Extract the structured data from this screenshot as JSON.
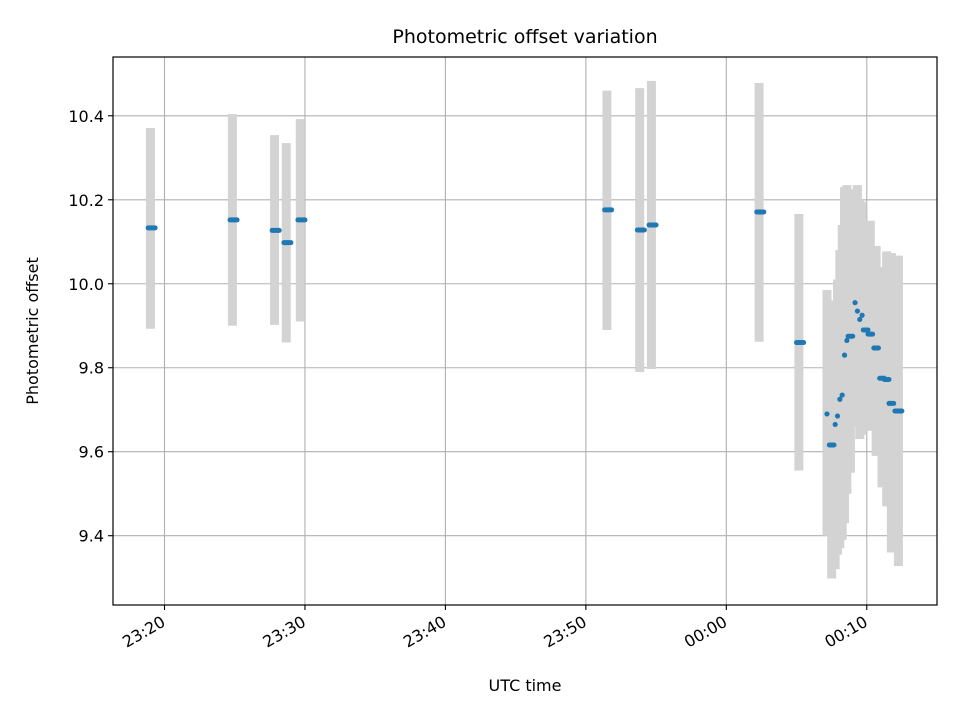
{
  "chart_data": {
    "type": "scatter",
    "title": "Photometric offset variation",
    "xlabel": "UTC time",
    "ylabel": "Photometric offset",
    "x_axis": {
      "kind": "time",
      "min": "23:16:20",
      "max": "00:15:00",
      "ticks": [
        "23:20",
        "23:30",
        "23:40",
        "23:50",
        "00:00",
        "00:10"
      ],
      "tick_times": [
        "23:20:00",
        "23:30:00",
        "23:40:00",
        "23:50:00",
        "00:00:00",
        "00:10:00"
      ],
      "tick_rotation_deg": 30
    },
    "ylim": [
      9.235,
      10.54
    ],
    "y_ticks": [
      9.4,
      9.6,
      9.8,
      10.0,
      10.2,
      10.4
    ],
    "y_tick_labels": [
      "9.4",
      "9.6",
      "9.8",
      "10.0",
      "10.2",
      "10.4"
    ],
    "grid": true,
    "colors": {
      "marker": "#1f77b4",
      "errorbar": "#d3d3d3",
      "grid": "#b0b0b0",
      "axes": "#000000"
    },
    "series": [
      {
        "points": [
          {
            "time": "23:19:00",
            "y": 10.133,
            "yerr_low": 9.893,
            "yerr_high": 10.371,
            "tstart": "23:18:50",
            "tend": "23:19:20"
          },
          {
            "time": "23:24:50",
            "y": 10.152,
            "yerr_low": 9.9,
            "yerr_high": 10.404,
            "tstart": "23:24:40",
            "tend": "23:25:10"
          },
          {
            "time": "23:27:50",
            "y": 10.127,
            "yerr_low": 9.902,
            "yerr_high": 10.354,
            "tstart": "23:27:40",
            "tend": "23:28:10"
          },
          {
            "time": "23:28:40",
            "y": 10.098,
            "yerr_low": 9.86,
            "yerr_high": 10.335,
            "tstart": "23:28:30",
            "tend": "23:29:00"
          },
          {
            "time": "23:29:40",
            "y": 10.152,
            "yerr_low": 9.91,
            "yerr_high": 10.392,
            "tstart": "23:29:30",
            "tend": "23:30:00"
          },
          {
            "time": "23:51:30",
            "y": 10.176,
            "yerr_low": 9.89,
            "yerr_high": 10.46,
            "tstart": "23:51:20",
            "tend": "23:51:50"
          },
          {
            "time": "23:53:50",
            "y": 10.128,
            "yerr_low": 9.79,
            "yerr_high": 10.466,
            "tstart": "23:53:40",
            "tend": "23:54:10"
          },
          {
            "time": "23:54:40",
            "y": 10.14,
            "yerr_low": 9.797,
            "yerr_high": 10.483,
            "tstart": "23:54:30",
            "tend": "23:55:00"
          },
          {
            "time": "00:02:20",
            "y": 10.171,
            "yerr_low": 9.862,
            "yerr_high": 10.478,
            "tstart": "00:02:10",
            "tend": "00:02:40"
          },
          {
            "time": "00:05:10",
            "y": 9.86,
            "yerr_low": 9.555,
            "yerr_high": 10.166,
            "tstart": "00:05:00",
            "tend": "00:05:30"
          },
          {
            "time": "00:07:10",
            "y": 9.69,
            "yerr_low": 9.4,
            "yerr_high": 9.985,
            "tstart": "00:07:05",
            "tend": "00:07:15"
          },
          {
            "time": "00:07:30",
            "y": 9.616,
            "yerr_low": 9.298,
            "yerr_high": 9.93,
            "tstart": "00:07:20",
            "tend": "00:07:40"
          },
          {
            "time": "00:07:45",
            "y": 9.665,
            "yerr_low": 9.32,
            "yerr_high": 9.96,
            "tstart": "00:07:40",
            "tend": "00:07:50"
          },
          {
            "time": "00:07:55",
            "y": 9.685,
            "yerr_low": 9.355,
            "yerr_high": 10.01,
            "tstart": "00:07:50",
            "tend": "00:08:00"
          },
          {
            "time": "00:08:05",
            "y": 9.725,
            "yerr_low": 9.37,
            "yerr_high": 10.08,
            "tstart": "00:08:00",
            "tend": "00:08:10"
          },
          {
            "time": "00:08:15",
            "y": 9.735,
            "yerr_low": 9.39,
            "yerr_high": 10.14,
            "tstart": "00:08:10",
            "tend": "00:08:20"
          },
          {
            "time": "00:08:25",
            "y": 9.83,
            "yerr_low": 9.43,
            "yerr_high": 10.23,
            "tstart": "00:08:20",
            "tend": "00:08:30"
          },
          {
            "time": "00:08:35",
            "y": 9.865,
            "yerr_low": 9.5,
            "yerr_high": 10.235,
            "tstart": "00:08:30",
            "tend": "00:08:40"
          },
          {
            "time": "00:08:50",
            "y": 9.875,
            "yerr_low": 9.55,
            "yerr_high": 10.2,
            "tstart": "00:08:40",
            "tend": "00:09:00"
          },
          {
            "time": "00:09:10",
            "y": 9.955,
            "yerr_low": 9.7,
            "yerr_high": 10.225,
            "tstart": "00:09:05",
            "tend": "00:09:15"
          },
          {
            "time": "00:09:20",
            "y": 9.935,
            "yerr_low": 9.66,
            "yerr_high": 10.235,
            "tstart": "00:09:15",
            "tend": "00:09:25"
          },
          {
            "time": "00:09:30",
            "y": 9.915,
            "yerr_low": 9.63,
            "yerr_high": 10.2,
            "tstart": "00:09:25",
            "tend": "00:09:35"
          },
          {
            "time": "00:09:40",
            "y": 9.925,
            "yerr_low": 9.64,
            "yerr_high": 10.195,
            "tstart": "00:09:35",
            "tend": "00:09:45"
          },
          {
            "time": "00:09:55",
            "y": 9.89,
            "yerr_low": 9.65,
            "yerr_high": 10.14,
            "tstart": "00:09:45",
            "tend": "00:10:05"
          },
          {
            "time": "00:10:15",
            "y": 9.88,
            "yerr_low": 9.65,
            "yerr_high": 10.15,
            "tstart": "00:10:05",
            "tend": "00:10:25"
          },
          {
            "time": "00:10:40",
            "y": 9.847,
            "yerr_low": 9.59,
            "yerr_high": 10.09,
            "tstart": "00:10:30",
            "tend": "00:10:50"
          },
          {
            "time": "00:11:05",
            "y": 9.775,
            "yerr_low": 9.515,
            "yerr_high": 10.04,
            "tstart": "00:10:55",
            "tend": "00:11:15"
          },
          {
            "time": "00:11:25",
            "y": 9.772,
            "yerr_low": 9.47,
            "yerr_high": 10.077,
            "tstart": "00:11:15",
            "tend": "00:11:35"
          },
          {
            "time": "00:11:45",
            "y": 9.715,
            "yerr_low": 9.36,
            "yerr_high": 10.073,
            "tstart": "00:11:35",
            "tend": "00:11:55"
          },
          {
            "time": "00:12:15",
            "y": 9.697,
            "yerr_low": 9.328,
            "yerr_high": 10.067,
            "tstart": "00:12:00",
            "tend": "00:12:30"
          }
        ]
      }
    ]
  }
}
